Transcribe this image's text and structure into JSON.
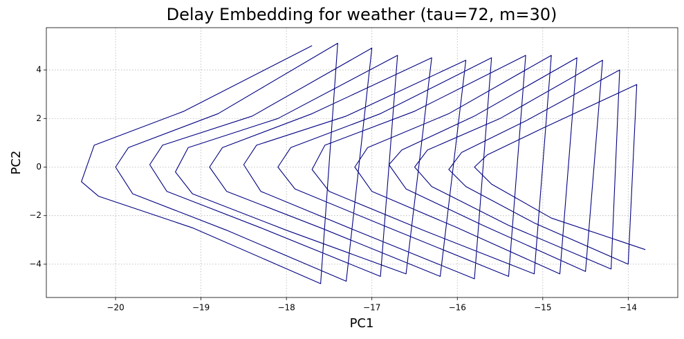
{
  "chart_data": {
    "type": "line",
    "title": "Delay Embedding for weather (tau=72, m=30)",
    "x_label": "PC1",
    "y_label": "PC2",
    "color": "#000080",
    "grid": true,
    "xlim": [
      -20.81,
      -13.42
    ],
    "ylim": [
      -5.37,
      5.74
    ],
    "xticks": [
      {
        "value": -20,
        "label": "−20"
      },
      {
        "value": -19,
        "label": "−19"
      },
      {
        "value": -18,
        "label": "−18"
      },
      {
        "value": -17,
        "label": "−17"
      },
      {
        "value": -16,
        "label": "−16"
      },
      {
        "value": -15,
        "label": "−15"
      },
      {
        "value": -14,
        "label": "−14"
      }
    ],
    "yticks": [
      {
        "value": -4,
        "label": "−4"
      },
      {
        "value": -2,
        "label": "−2"
      },
      0,
      2,
      4
    ],
    "x": [
      -17.7,
      -19.2,
      -20.25,
      -20.4,
      -20.2,
      -19.1,
      -17.6,
      -17.4,
      -18.8,
      -19.85,
      -20.0,
      -19.8,
      -18.7,
      -17.3,
      -17.0,
      -18.4,
      -19.45,
      -19.6,
      -19.4,
      -18.3,
      -16.9,
      -16.7,
      -18.1,
      -19.15,
      -19.3,
      -19.1,
      -18.0,
      -16.6,
      -16.3,
      -17.7,
      -18.75,
      -18.9,
      -18.7,
      -17.6,
      -16.2,
      -15.9,
      -17.3,
      -18.35,
      -18.5,
      -18.3,
      -17.2,
      -15.8,
      -15.6,
      -16.9,
      -17.95,
      -18.1,
      -17.9,
      -16.8,
      -15.4,
      -15.2,
      -16.5,
      -17.55,
      -17.7,
      -17.5,
      -16.4,
      -15.1,
      -14.9,
      -16.1,
      -17.05,
      -17.2,
      -17.0,
      -16.0,
      -14.8,
      -14.6,
      -15.8,
      -16.65,
      -16.8,
      -16.6,
      -15.7,
      -14.5,
      -14.3,
      -15.5,
      -16.35,
      -16.5,
      -16.3,
      -15.4,
      -14.2,
      -14.1,
      -15.2,
      -15.95,
      -16.1,
      -15.9,
      -15.1,
      -14.0,
      -13.9,
      -15.0,
      -15.65,
      -15.8,
      -15.6,
      -14.9,
      -13.8
    ],
    "values": [
      5.0,
      2.3,
      0.9,
      -0.6,
      -1.2,
      -2.5,
      -4.8,
      5.1,
      2.2,
      0.8,
      0.0,
      -1.1,
      -2.6,
      -4.7,
      4.9,
      2.1,
      0.9,
      0.1,
      -1.0,
      -2.5,
      -4.5,
      4.6,
      2.0,
      0.8,
      -0.2,
      -1.1,
      -2.6,
      -4.4,
      4.5,
      2.2,
      0.8,
      0.0,
      -1.0,
      -2.5,
      -4.5,
      4.4,
      2.1,
      0.9,
      0.1,
      -1.0,
      -2.6,
      -4.6,
      4.5,
      2.2,
      0.8,
      0.0,
      -0.9,
      -2.5,
      -4.5,
      4.6,
      2.3,
      0.9,
      -0.1,
      -1.0,
      -2.6,
      -4.4,
      4.6,
      2.2,
      0.8,
      0.0,
      -1.0,
      -2.5,
      -4.4,
      4.5,
      2.1,
      0.7,
      0.1,
      -0.9,
      -2.4,
      -4.3,
      4.4,
      2.0,
      0.7,
      0.0,
      -0.8,
      -2.4,
      -4.2,
      4.0,
      1.9,
      0.6,
      -0.1,
      -0.8,
      -2.3,
      -4.0,
      3.4,
      1.6,
      0.5,
      0.0,
      -0.7,
      -2.1,
      -3.4
    ]
  }
}
